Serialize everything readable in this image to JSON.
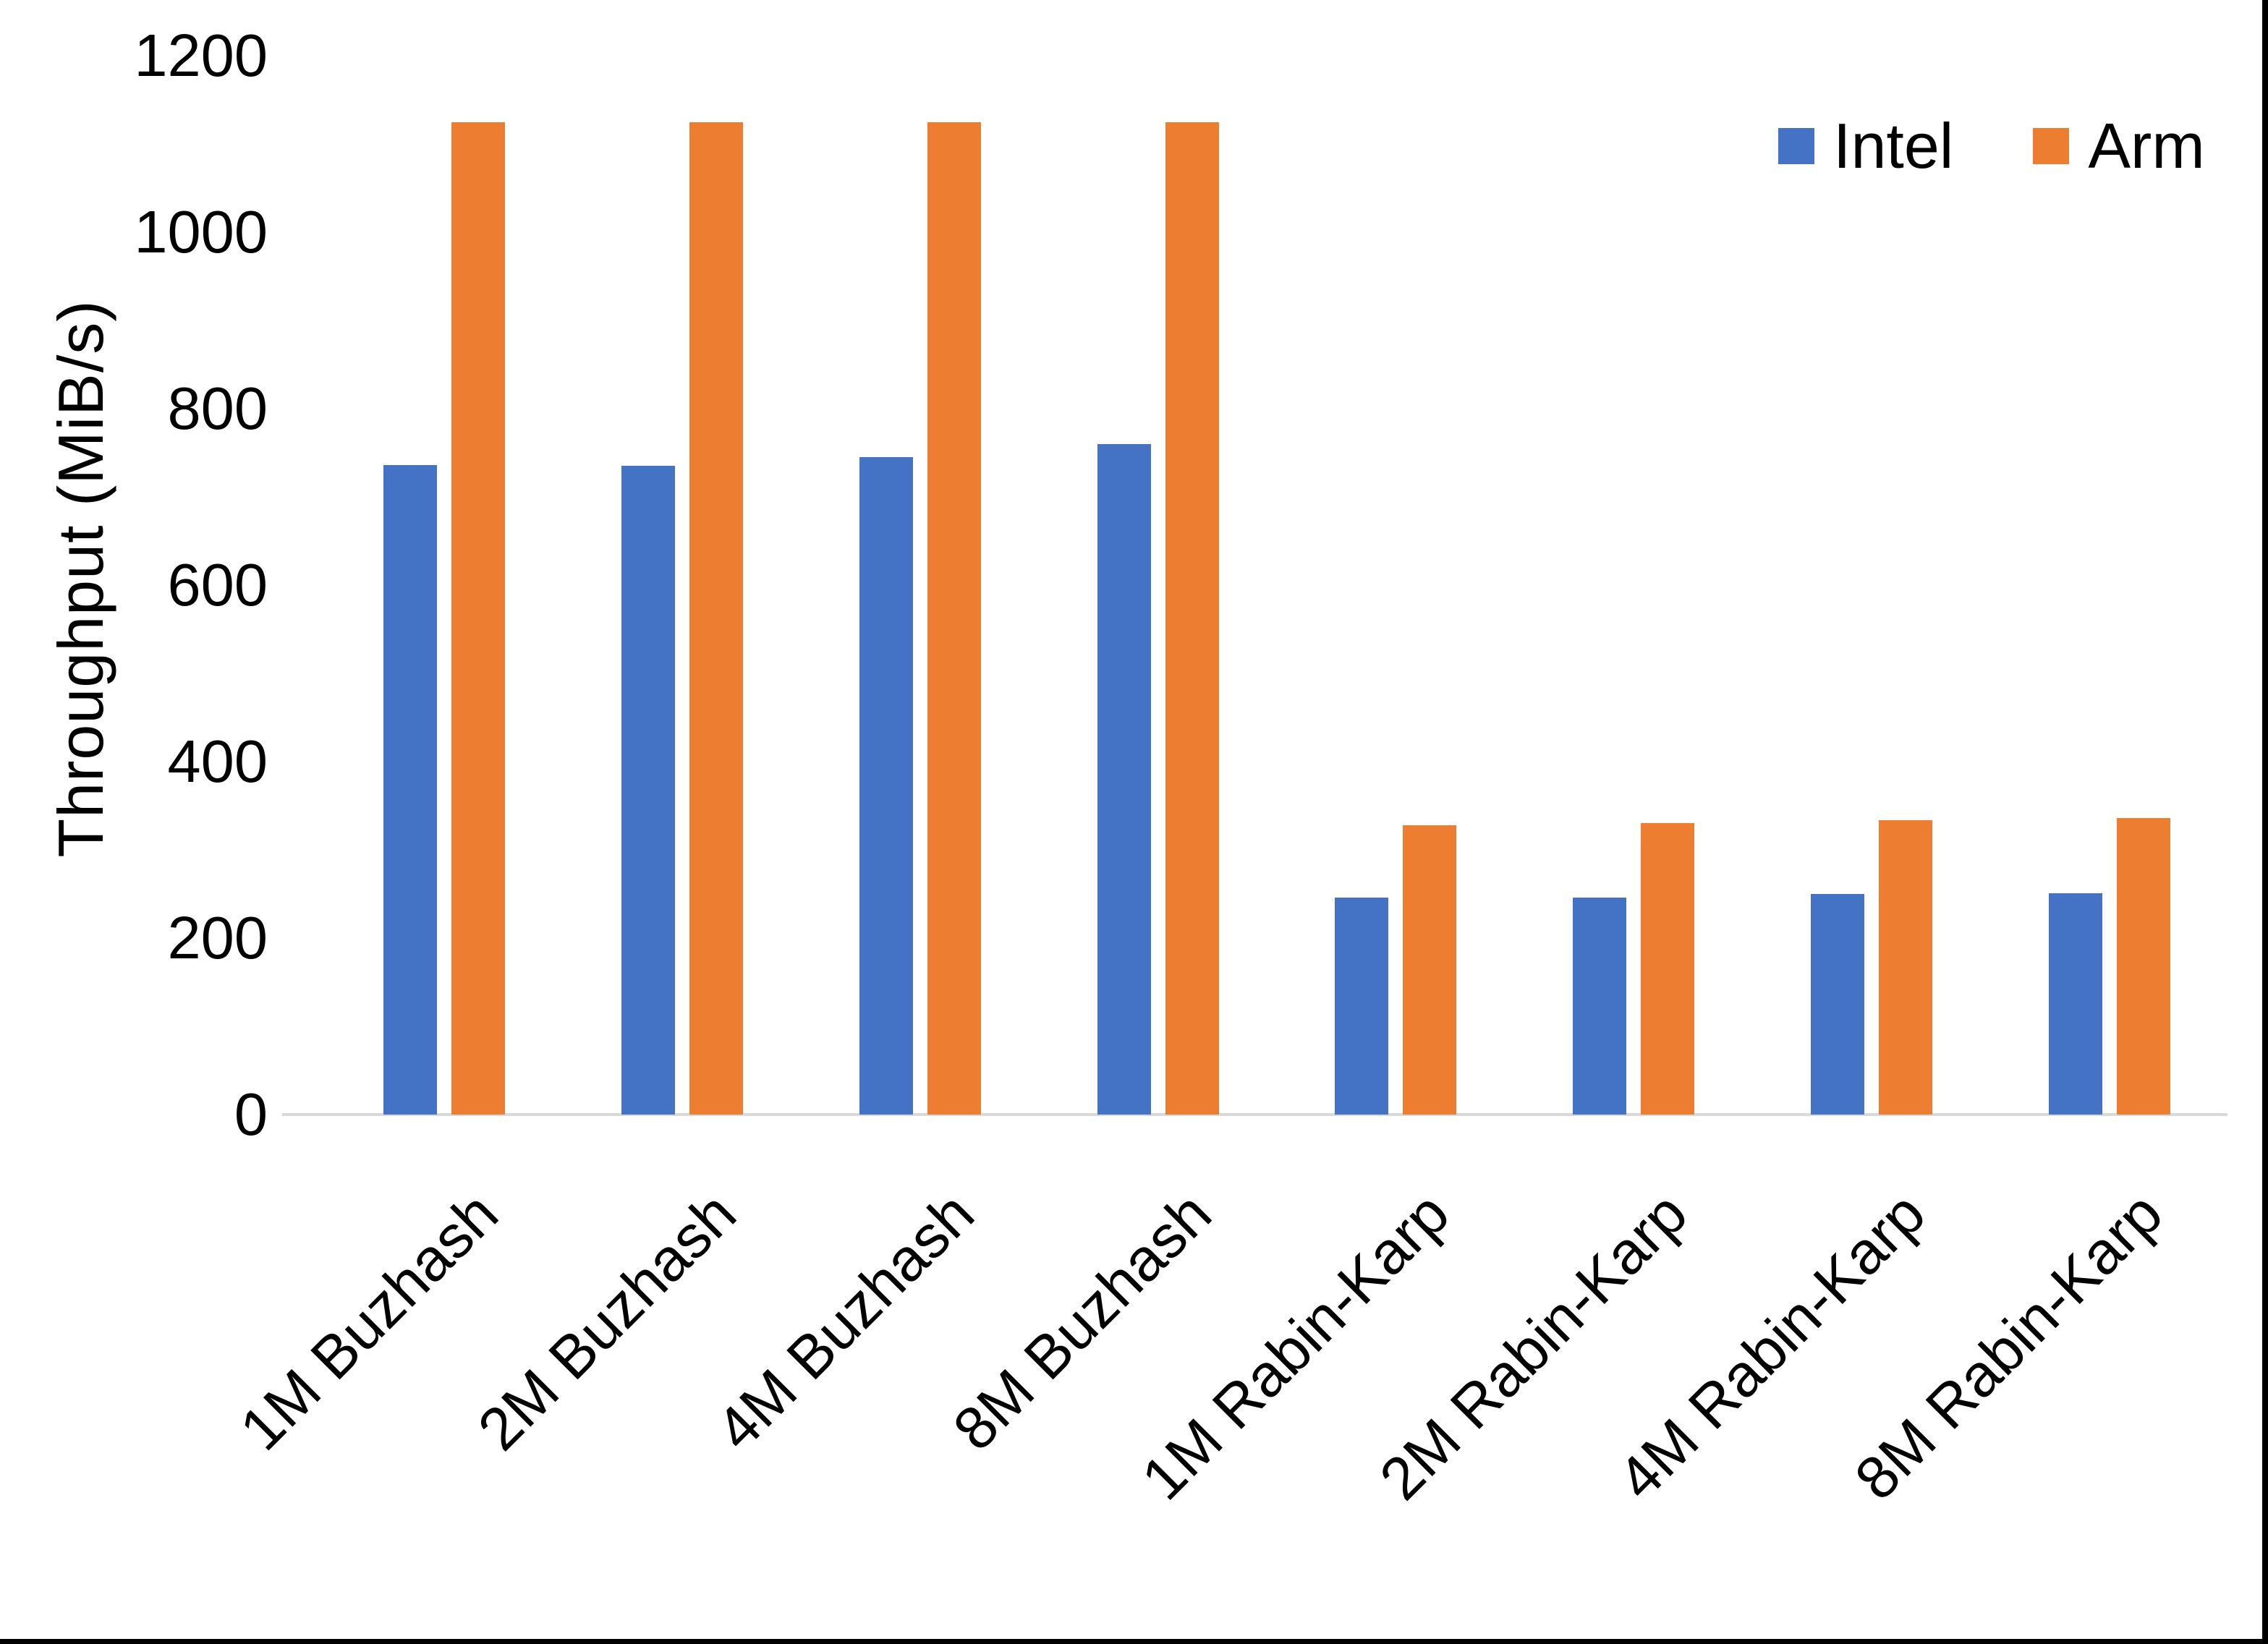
{
  "chart_data": {
    "type": "bar",
    "title": "",
    "xlabel": "",
    "ylabel": "Throughput (MiB/s)",
    "ylim": [
      0,
      1200
    ],
    "y_ticks": [
      0,
      200,
      400,
      600,
      800,
      1000,
      1200
    ],
    "grid": false,
    "legend_position": "top-right",
    "categories": [
      "1M Buzhash",
      "2M Buzhash",
      "4M Buzhash",
      "8M Buzhash",
      "1M Rabin-Karp",
      "2M Rabin-Karp",
      "4M Rabin-Karp",
      "8M Rabin-Karp"
    ],
    "series": [
      {
        "name": "Intel",
        "color": "#4472C4",
        "values": [
          736,
          735,
          745,
          760,
          246,
          246,
          250,
          251
        ]
      },
      {
        "name": "Arm",
        "color": "#ED7D31",
        "values": [
          1125,
          1125,
          1125,
          1125,
          328,
          330,
          334,
          336
        ]
      }
    ]
  },
  "colors": {
    "background": "#FFFFFF",
    "text": "#000000",
    "axis_line": "#D9D9D9",
    "frame": "#000000"
  }
}
